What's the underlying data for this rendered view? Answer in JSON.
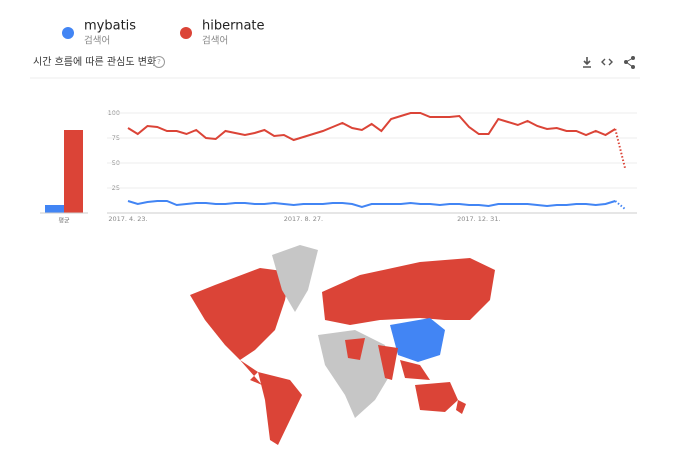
{
  "header": {
    "title": "시간 흐름에 따른 관심도 변화"
  },
  "chart_data": [
    {
      "type": "bar",
      "categories": [
        "평균"
      ],
      "ylim": [
        0,
        100
      ],
      "series": [
        {
          "color": "#4285f4",
          "values": [
            8
          ]
        },
        {
          "color": "#db4437",
          "values": [
            83
          ]
        }
      ]
    },
    {
      "type": "line",
      "ylim": [
        0,
        100
      ],
      "yticks": [
        25,
        50,
        75,
        100
      ],
      "grid": true,
      "categories": [
        "2017. 4. 23.",
        null,
        null,
        null,
        null,
        null,
        null,
        null,
        null,
        null,
        null,
        null,
        null,
        null,
        null,
        null,
        null,
        null,
        "2017. 8. 27.",
        null,
        null,
        null,
        null,
        null,
        null,
        null,
        null,
        null,
        null,
        null,
        null,
        null,
        null,
        null,
        null,
        null,
        "2017. 12. 31.",
        null,
        null,
        null,
        null,
        null,
        null,
        null,
        null,
        null,
        null,
        null,
        null,
        null,
        null,
        null
      ],
      "series": [
        {
          "name": "mybatis",
          "subtitle": "검색어",
          "color": "#4285f4",
          "values": [
            12,
            9,
            11,
            12,
            12,
            8,
            9,
            10,
            10,
            9,
            9,
            10,
            10,
            9,
            9,
            10,
            9,
            8,
            9,
            9,
            9,
            10,
            10,
            9,
            6,
            9,
            9,
            9,
            9,
            10,
            9,
            9,
            8,
            9,
            9,
            8,
            8,
            7,
            9,
            9,
            9,
            9,
            8,
            7,
            8,
            8,
            9,
            9,
            8,
            9,
            12,
            4
          ]
        },
        {
          "name": "hibernate",
          "subtitle": "검색어",
          "color": "#db4437",
          "values": [
            85,
            79,
            87,
            86,
            82,
            82,
            79,
            83,
            75,
            74,
            82,
            80,
            78,
            80,
            83,
            77,
            78,
            73,
            76,
            79,
            82,
            86,
            90,
            85,
            83,
            89,
            82,
            94,
            97,
            100,
            100,
            96,
            96,
            96,
            97,
            86,
            79,
            79,
            94,
            91,
            88,
            92,
            87,
            84,
            85,
            82,
            82,
            78,
            82,
            78,
            84,
            45
          ]
        }
      ]
    }
  ]
}
